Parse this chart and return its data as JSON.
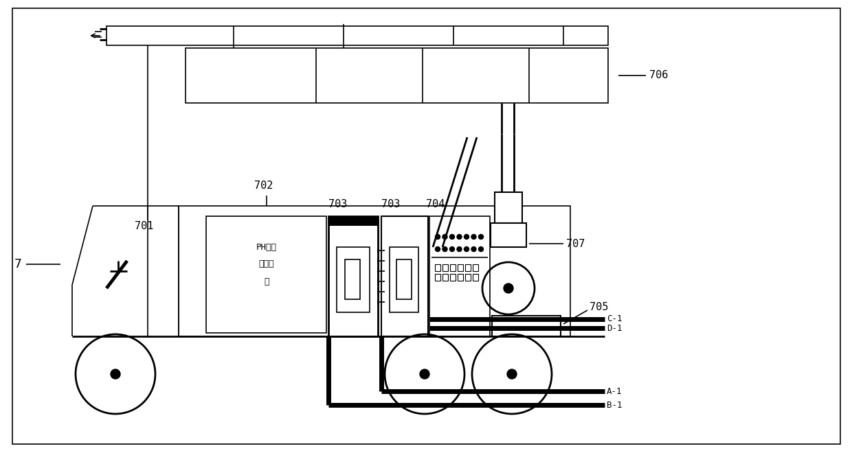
{
  "bg_color": "#ffffff",
  "line_color": "#000000",
  "fig_width": 12.4,
  "fig_height": 6.6,
  "ph_text_line1": "PH调节",
  "ph_text_line2": "液存放",
  "ph_text_line3": "筱"
}
